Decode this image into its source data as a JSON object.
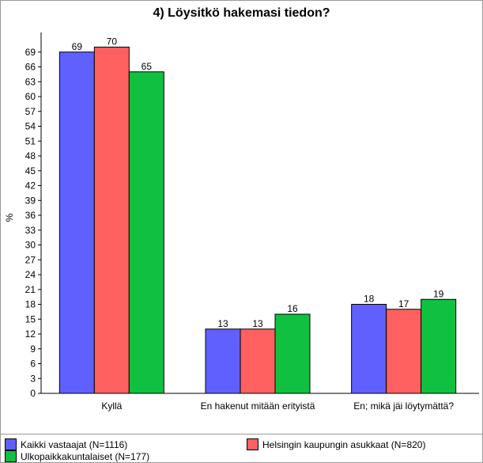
{
  "chart_data": {
    "type": "bar",
    "title": "4) Löysitkö hakemasi tiedon?",
    "ylabel": "%",
    "xlabel": "",
    "ylim": [
      0,
      72
    ],
    "yticks": [
      0,
      3,
      6,
      9,
      12,
      15,
      18,
      21,
      24,
      27,
      30,
      33,
      36,
      39,
      42,
      45,
      48,
      51,
      54,
      57,
      60,
      63,
      66,
      69
    ],
    "grid": false,
    "legend_position": "bottom",
    "categories": [
      "Kyllä",
      "En hakenut mitään erityistä",
      "En; mikä jäi löytymättä?"
    ],
    "series": [
      {
        "name": "Kaikki vastaajat (N=1116)",
        "color": "#6060ff",
        "values": [
          69,
          13,
          18
        ]
      },
      {
        "name": "Helsingin kaupungin asukkaat (N=820)",
        "color": "#ff6060",
        "values": [
          70,
          13,
          17
        ]
      },
      {
        "name": "Ulkopaikkakuntalaiset (N=177)",
        "color": "#10c040",
        "values": [
          65,
          16,
          19
        ]
      }
    ]
  }
}
